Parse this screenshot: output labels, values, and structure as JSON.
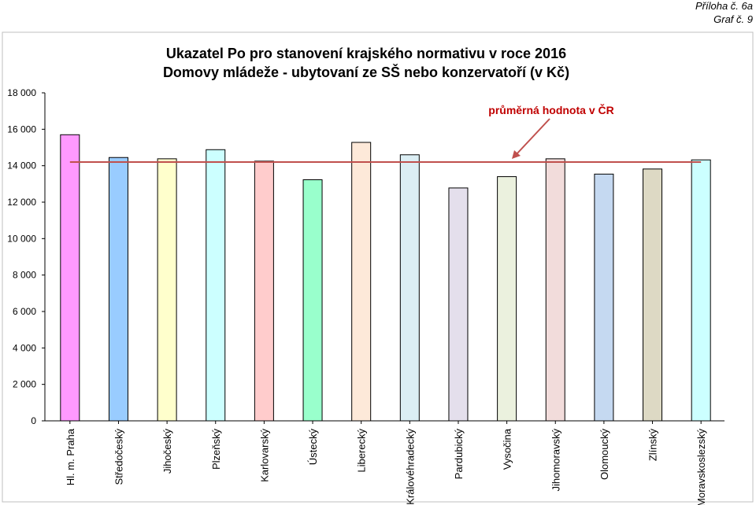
{
  "header": {
    "annex": "Příloha č. 6a",
    "graph_no": "Graf č. 9"
  },
  "chart_data": {
    "type": "bar",
    "title_line1": "Ukazatel Po pro stanovení krajského normativu v roce 2016",
    "title_line2": "Domovy mládeže - ubytovaní ze SŠ nebo konzervatoří (v Kč)",
    "xlabel": "",
    "ylabel": "",
    "ylim": [
      0,
      18000
    ],
    "yticks": [
      {
        "value": 0,
        "label": "0"
      },
      {
        "value": 2000,
        "label": "2 000"
      },
      {
        "value": 4000,
        "label": "4 000"
      },
      {
        "value": 6000,
        "label": "6 000"
      },
      {
        "value": 8000,
        "label": "8 000"
      },
      {
        "value": 10000,
        "label": "10 000"
      },
      {
        "value": 12000,
        "label": "12 000"
      },
      {
        "value": 14000,
        "label": "14 000"
      },
      {
        "value": 16000,
        "label": "16 000"
      },
      {
        "value": 18000,
        "label": "18 000"
      }
    ],
    "grid": false,
    "categories": [
      "Hl. m. Praha",
      "Středočeský",
      "Jihočeský",
      "Plzeňský",
      "Karlovarský",
      "Ústecký",
      "Liberecký",
      "Královéhradecký",
      "Pardubický",
      "Vysočina",
      "Jihomoravský",
      "Olomoucký",
      "Zlínský",
      "Moravskoslezský"
    ],
    "values": [
      15700,
      14450,
      14380,
      14880,
      14250,
      13230,
      15280,
      14600,
      12780,
      13400,
      14380,
      13540,
      13820,
      14320
    ],
    "colors": [
      "#ff99ff",
      "#99ccff",
      "#ffffcc",
      "#ccffff",
      "#ffcccc",
      "#99ffcc",
      "#fde9d9",
      "#dbeef4",
      "#e4dfec",
      "#ebf1de",
      "#f2dcdb",
      "#c5d9f1",
      "#ddd9c4",
      "#ccffff"
    ],
    "average": {
      "value": 14200,
      "label": "průměrná hodnota v ČR",
      "color": "#c0504d"
    }
  }
}
